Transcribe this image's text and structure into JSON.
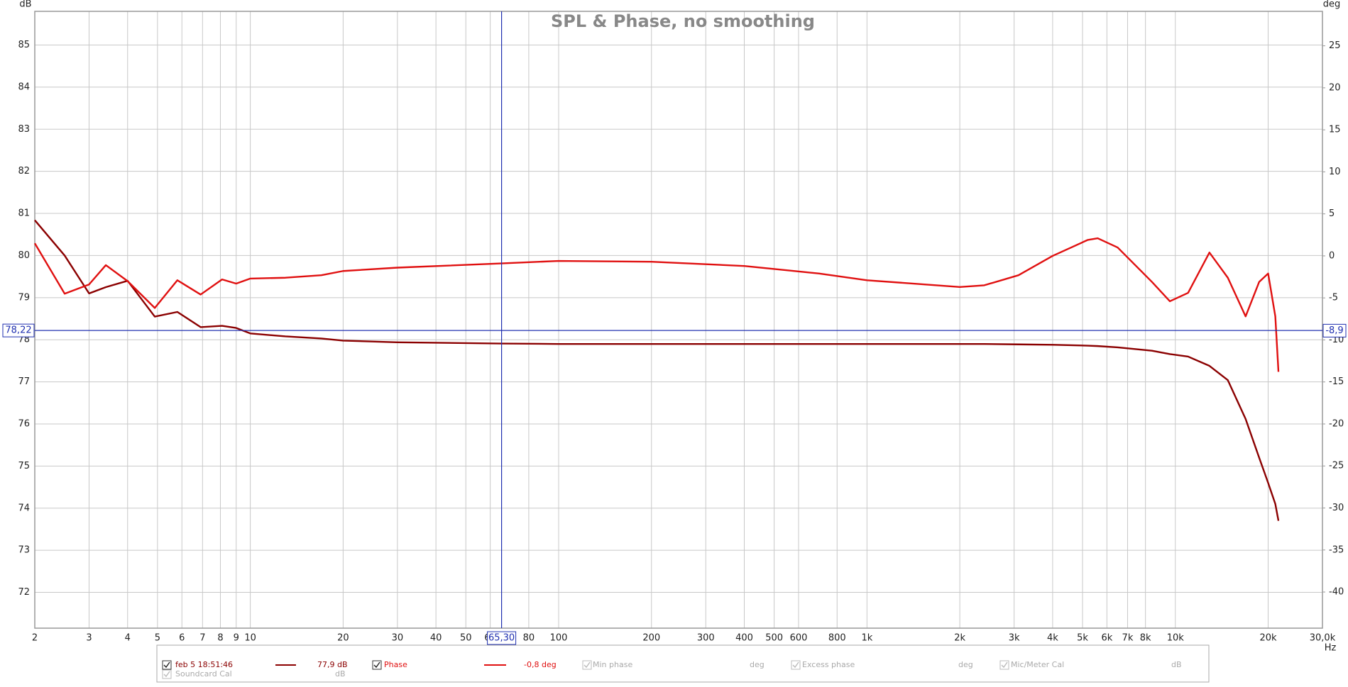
{
  "chart_data": {
    "type": "line",
    "title": "SPL & Phase, no smoothing",
    "y_unit": "dB",
    "y2_unit": "deg",
    "x_unit": "Hz",
    "log_x": true,
    "grid": true,
    "xlim": [
      2,
      30000
    ],
    "ylim": [
      71.15,
      85.8
    ],
    "y2lim": [
      -44.3,
      29.1
    ],
    "xticks": [
      2,
      3,
      4,
      5,
      6,
      7,
      8,
      9,
      10,
      20,
      30,
      40,
      50,
      60,
      80,
      100,
      200,
      300,
      400,
      500,
      600,
      800,
      {
        "value": 1000,
        "label": "1k"
      },
      {
        "value": 2000,
        "label": "2k"
      },
      {
        "value": 3000,
        "label": "3k"
      },
      {
        "value": 4000,
        "label": "4k"
      },
      {
        "value": 5000,
        "label": "5k"
      },
      {
        "value": 6000,
        "label": "6k"
      },
      {
        "value": 7000,
        "label": "7k"
      },
      {
        "value": 8000,
        "label": "8k"
      },
      {
        "value": 10000,
        "label": "10k"
      },
      {
        "value": 20000,
        "label": "20k"
      },
      {
        "value": 30000,
        "label": "30,0k"
      }
    ],
    "yticks": [
      72,
      73,
      74,
      75,
      76,
      77,
      78,
      79,
      80,
      81,
      82,
      83,
      84,
      85
    ],
    "y2ticks": [
      -40,
      -35,
      -30,
      -25,
      -20,
      -15,
      -10,
      -5,
      0,
      5,
      10,
      15,
      20,
      25
    ],
    "x": [
      2,
      2.5,
      3,
      3.4,
      4,
      4.9,
      5.8,
      6.9,
      8.1,
      9,
      10,
      13,
      17,
      20,
      30,
      65,
      100,
      200,
      400,
      700,
      1000,
      2000,
      2400,
      3100,
      4000,
      5200,
      5600,
      6500,
      8400,
      9600,
      11000,
      12900,
      14800,
      16900,
      18700,
      20000,
      21100,
      21600
    ],
    "series": [
      {
        "name": "feb 5 18:51:46",
        "readout": "77,9 dB",
        "color": "#8b0000",
        "values": [
          80.84,
          80.0,
          79.1,
          79.25,
          79.4,
          78.55,
          78.66,
          78.3,
          78.33,
          78.28,
          78.15,
          78.08,
          78.03,
          77.98,
          77.94,
          77.91,
          77.9,
          77.9,
          77.9,
          77.9,
          77.9,
          77.9,
          77.9,
          77.89,
          77.88,
          77.86,
          77.85,
          77.82,
          77.74,
          77.66,
          77.6,
          77.38,
          77.04,
          76.12,
          75.2,
          74.6,
          74.1,
          73.7
        ]
      },
      {
        "name": "Phase",
        "readout": "-0,8 deg",
        "color": "#e01010",
        "axis": "y2",
        "values": [
          1.5,
          -4.5,
          -3.4,
          -1.1,
          -3.0,
          -6.2,
          -2.9,
          -4.6,
          -2.8,
          -3.3,
          -2.7,
          -2.6,
          -2.3,
          -1.8,
          -1.4,
          -0.9,
          -0.6,
          -0.7,
          -1.2,
          -2.1,
          -2.9,
          -3.7,
          -3.5,
          -2.3,
          0,
          1.9,
          2.1,
          1.0,
          -3.1,
          -5.4,
          -4.4,
          0.4,
          -2.6,
          -7.2,
          -3.1,
          -2.1,
          -7.2,
          -13.8
        ]
      }
    ],
    "cursor": {
      "x": {
        "value": 65.3,
        "label": "65,30"
      },
      "y": {
        "value": 78.22,
        "label": "78,22"
      },
      "y2": {
        "value": -8.9,
        "label": "-8,9"
      },
      "color": "#2030b0"
    },
    "legend_extra": [
      {
        "label": "Min phase",
        "unit": "deg"
      },
      {
        "label": "Excess phase",
        "unit": "deg"
      },
      {
        "label": "Mic/Meter Cal",
        "unit": "dB"
      },
      {
        "label": "Soundcard Cal",
        "unit": "dB"
      }
    ]
  }
}
